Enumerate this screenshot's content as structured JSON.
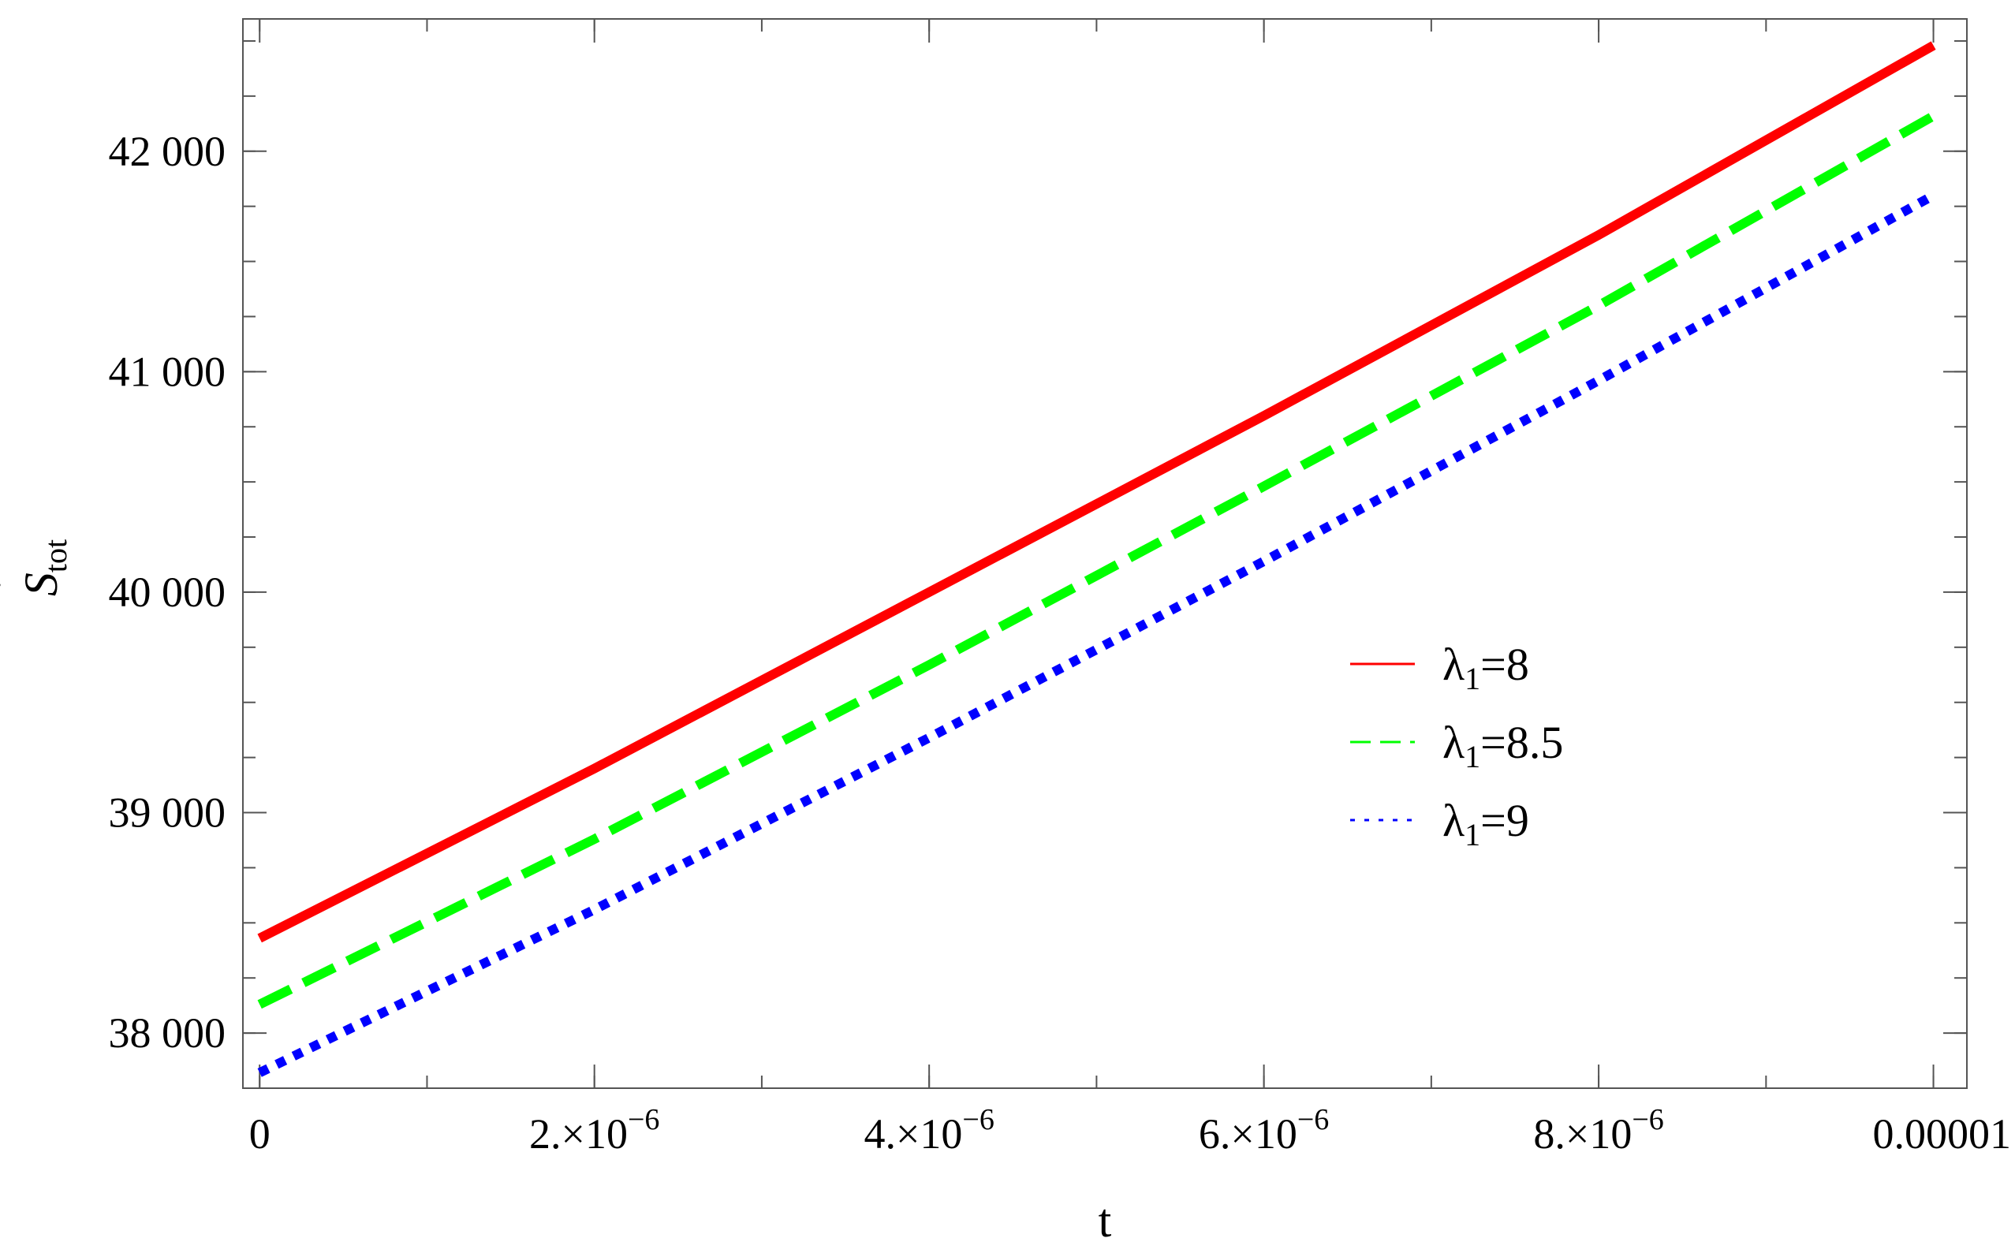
{
  "chart_data": {
    "type": "line",
    "title": "",
    "xlabel": "t",
    "ylabel": {
      "main": "S",
      "sub": "tot",
      "dot": "˙"
    },
    "xlim": [
      -1e-07,
      1.02e-05
    ],
    "ylim": [
      37750,
      42600
    ],
    "x_ticks": [
      {
        "value": 0,
        "label": "0"
      },
      {
        "value": 2e-06,
        "mantissa": "2.",
        "times": "×",
        "base": "10",
        "exp": "−6"
      },
      {
        "value": 4e-06,
        "mantissa": "4.",
        "times": "×",
        "base": "10",
        "exp": "−6"
      },
      {
        "value": 6e-06,
        "mantissa": "6.",
        "times": "×",
        "base": "10",
        "exp": "−6"
      },
      {
        "value": 8e-06,
        "mantissa": "8.",
        "times": "×",
        "base": "10",
        "exp": "−6"
      },
      {
        "value": 1e-05,
        "label": "0.00001"
      }
    ],
    "y_ticks": [
      {
        "value": 38000,
        "label": "38 000"
      },
      {
        "value": 39000,
        "label": "39 000"
      },
      {
        "value": 40000,
        "label": "40 000"
      },
      {
        "value": 41000,
        "label": "41 000"
      },
      {
        "value": 42000,
        "label": "42 000"
      }
    ],
    "x_minor_step": 1e-06,
    "y_minor_step": 250,
    "grid": false,
    "legend_position": "center-right",
    "series": [
      {
        "name": "λ1=8",
        "name_parts": {
          "sym": "λ",
          "sub": "1",
          "val": "=8"
        },
        "color": "#ff0000",
        "style": "solid",
        "x": [
          0,
          2e-06,
          4e-06,
          6e-06,
          8e-06,
          1e-05
        ],
        "y": [
          38430,
          39200,
          40000,
          40800,
          41620,
          42480
        ]
      },
      {
        "name": "λ1=8.5",
        "name_parts": {
          "sym": "λ",
          "sub": "1",
          "val": "=8.5"
        },
        "color": "#00ff00",
        "style": "dashed",
        "x": [
          0,
          2e-06,
          4e-06,
          6e-06,
          8e-06,
          1e-05
        ],
        "y": [
          38130,
          38880,
          39670,
          40480,
          41300,
          42160
        ]
      },
      {
        "name": "λ1=9",
        "name_parts": {
          "sym": "λ",
          "sub": "1",
          "val": "=9"
        },
        "color": "#0000ff",
        "style": "dotted",
        "x": [
          0,
          2e-06,
          4e-06,
          6e-06,
          8e-06,
          1e-05
        ],
        "y": [
          37820,
          38560,
          39340,
          40140,
          40960,
          41800
        ]
      }
    ]
  }
}
